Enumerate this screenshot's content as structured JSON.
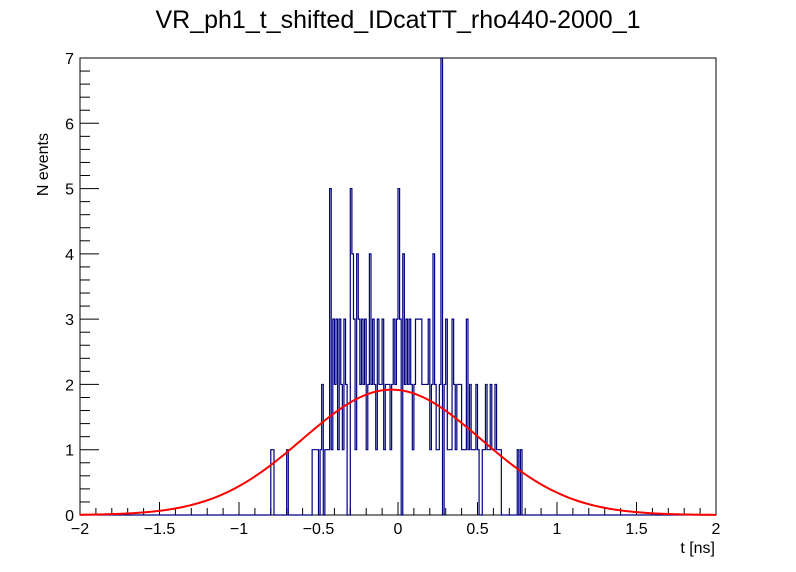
{
  "chart_data": {
    "type": "bar",
    "title": "VR_ph1_t_shifted_IDcatTT_rho440-2000_1",
    "xlabel": "t [ns]",
    "ylabel": "N events",
    "xlim": [
      -2,
      2
    ],
    "ylim": [
      0,
      7
    ],
    "x_ticks": [
      -2,
      -1.5,
      -1,
      -0.5,
      0,
      0.5,
      1,
      1.5,
      2
    ],
    "y_ticks": [
      0,
      1,
      2,
      3,
      4,
      5,
      6,
      7
    ],
    "x_tick_labels": [
      "−2",
      "−1.5",
      "−1",
      "−0.5",
      "0",
      "0.5",
      "1",
      "1.5",
      "2"
    ],
    "y_tick_labels": [
      "0",
      "1",
      "2",
      "3",
      "4",
      "5",
      "6",
      "7"
    ],
    "grid": false,
    "legend": "none",
    "histogram": {
      "bin_width": 0.01,
      "bins": [
        {
          "x": -0.8,
          "y": 1
        },
        {
          "x": -0.79,
          "y": 1
        },
        {
          "x": -0.7,
          "y": 1
        },
        {
          "x": -0.54,
          "y": 1
        },
        {
          "x": -0.53,
          "y": 1
        },
        {
          "x": -0.52,
          "y": 1
        },
        {
          "x": -0.51,
          "y": 1
        },
        {
          "x": -0.49,
          "y": 1
        },
        {
          "x": -0.48,
          "y": 2
        },
        {
          "x": -0.46,
          "y": 1
        },
        {
          "x": -0.45,
          "y": 1
        },
        {
          "x": -0.44,
          "y": 1
        },
        {
          "x": -0.43,
          "y": 5
        },
        {
          "x": -0.42,
          "y": 1
        },
        {
          "x": -0.41,
          "y": 3
        },
        {
          "x": -0.4,
          "y": 2
        },
        {
          "x": -0.39,
          "y": 3
        },
        {
          "x": -0.38,
          "y": 1
        },
        {
          "x": -0.37,
          "y": 3
        },
        {
          "x": -0.36,
          "y": 2
        },
        {
          "x": -0.35,
          "y": 1
        },
        {
          "x": -0.34,
          "y": 3
        },
        {
          "x": -0.33,
          "y": 2
        },
        {
          "x": -0.3,
          "y": 5
        },
        {
          "x": -0.29,
          "y": 4
        },
        {
          "x": -0.28,
          "y": 3
        },
        {
          "x": -0.27,
          "y": 1
        },
        {
          "x": -0.26,
          "y": 4
        },
        {
          "x": -0.25,
          "y": 3
        },
        {
          "x": -0.24,
          "y": 2
        },
        {
          "x": -0.23,
          "y": 3
        },
        {
          "x": -0.22,
          "y": 2
        },
        {
          "x": -0.21,
          "y": 3
        },
        {
          "x": -0.2,
          "y": 1
        },
        {
          "x": -0.19,
          "y": 2
        },
        {
          "x": -0.18,
          "y": 4
        },
        {
          "x": -0.17,
          "y": 2
        },
        {
          "x": -0.16,
          "y": 3
        },
        {
          "x": -0.15,
          "y": 2
        },
        {
          "x": -0.14,
          "y": 1
        },
        {
          "x": -0.13,
          "y": 3
        },
        {
          "x": -0.12,
          "y": 2
        },
        {
          "x": -0.11,
          "y": 2
        },
        {
          "x": -0.1,
          "y": 3
        },
        {
          "x": -0.09,
          "y": 1
        },
        {
          "x": -0.08,
          "y": 2
        },
        {
          "x": -0.07,
          "y": 2
        },
        {
          "x": -0.06,
          "y": 2
        },
        {
          "x": -0.05,
          "y": 1
        },
        {
          "x": -0.04,
          "y": 2
        },
        {
          "x": -0.03,
          "y": 3
        },
        {
          "x": -0.02,
          "y": 2
        },
        {
          "x": -0.01,
          "y": 3
        },
        {
          "x": 0.0,
          "y": 5
        },
        {
          "x": 0.01,
          "y": 3
        },
        {
          "x": 0.02,
          "y": 0
        },
        {
          "x": 0.03,
          "y": 4
        },
        {
          "x": 0.04,
          "y": 2
        },
        {
          "x": 0.05,
          "y": 3
        },
        {
          "x": 0.06,
          "y": 2
        },
        {
          "x": 0.07,
          "y": 3
        },
        {
          "x": 0.08,
          "y": 2
        },
        {
          "x": 0.09,
          "y": 1
        },
        {
          "x": 0.1,
          "y": 2
        },
        {
          "x": 0.11,
          "y": 3
        },
        {
          "x": 0.12,
          "y": 3
        },
        {
          "x": 0.13,
          "y": 3
        },
        {
          "x": 0.14,
          "y": 3
        },
        {
          "x": 0.15,
          "y": 2
        },
        {
          "x": 0.16,
          "y": 2
        },
        {
          "x": 0.17,
          "y": 2
        },
        {
          "x": 0.18,
          "y": 2
        },
        {
          "x": 0.19,
          "y": 3
        },
        {
          "x": 0.2,
          "y": 1
        },
        {
          "x": 0.21,
          "y": 2
        },
        {
          "x": 0.22,
          "y": 4
        },
        {
          "x": 0.23,
          "y": 2
        },
        {
          "x": 0.24,
          "y": 1
        },
        {
          "x": 0.25,
          "y": 1
        },
        {
          "x": 0.26,
          "y": 2
        },
        {
          "x": 0.27,
          "y": 7
        },
        {
          "x": 0.28,
          "y": 0
        },
        {
          "x": 0.29,
          "y": 2
        },
        {
          "x": 0.3,
          "y": 3
        },
        {
          "x": 0.31,
          "y": 1
        },
        {
          "x": 0.32,
          "y": 1
        },
        {
          "x": 0.33,
          "y": 1
        },
        {
          "x": 0.34,
          "y": 3
        },
        {
          "x": 0.35,
          "y": 2
        },
        {
          "x": 0.36,
          "y": 1
        },
        {
          "x": 0.37,
          "y": 2
        },
        {
          "x": 0.38,
          "y": 2
        },
        {
          "x": 0.39,
          "y": 2
        },
        {
          "x": 0.4,
          "y": 1
        },
        {
          "x": 0.41,
          "y": 1
        },
        {
          "x": 0.42,
          "y": 1
        },
        {
          "x": 0.43,
          "y": 3
        },
        {
          "x": 0.44,
          "y": 1
        },
        {
          "x": 0.45,
          "y": 2
        },
        {
          "x": 0.46,
          "y": 1
        },
        {
          "x": 0.47,
          "y": 1
        },
        {
          "x": 0.48,
          "y": 1
        },
        {
          "x": 0.49,
          "y": 2
        },
        {
          "x": 0.5,
          "y": 1
        },
        {
          "x": 0.53,
          "y": 1
        },
        {
          "x": 0.54,
          "y": 1
        },
        {
          "x": 0.55,
          "y": 2
        },
        {
          "x": 0.56,
          "y": 1
        },
        {
          "x": 0.57,
          "y": 1
        },
        {
          "x": 0.58,
          "y": 2
        },
        {
          "x": 0.59,
          "y": 1
        },
        {
          "x": 0.6,
          "y": 1
        },
        {
          "x": 0.61,
          "y": 2
        },
        {
          "x": 0.62,
          "y": 1
        },
        {
          "x": 0.63,
          "y": 1
        },
        {
          "x": 0.64,
          "y": 1
        },
        {
          "x": 0.75,
          "y": 1
        },
        {
          "x": 0.77,
          "y": 1
        }
      ]
    },
    "fit": {
      "type": "gaussian",
      "amplitude": 1.92,
      "mean": -0.04,
      "sigma": 0.56,
      "color": "#ff0000"
    },
    "colors": {
      "histogram": "#000080",
      "fit": "#ff0000",
      "axes": "#000000",
      "background": "#ffffff"
    }
  }
}
